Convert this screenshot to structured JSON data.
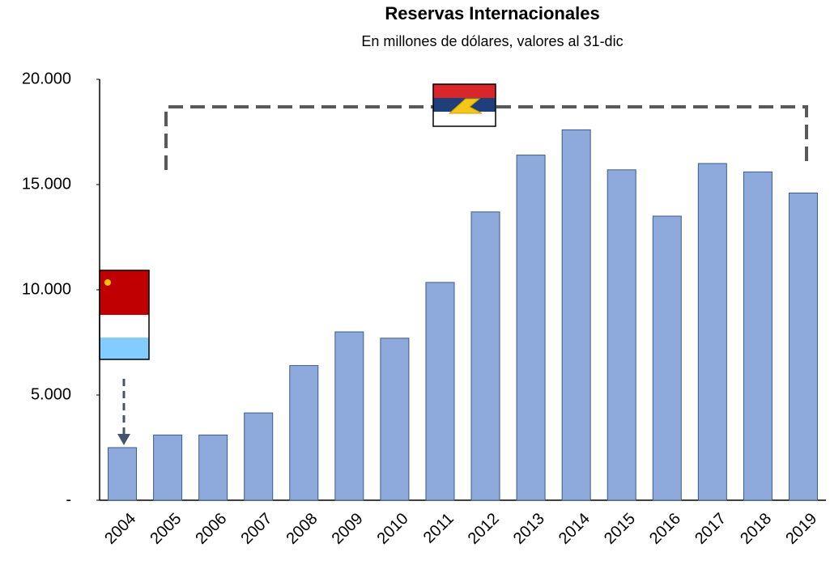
{
  "chart_data": {
    "type": "bar",
    "title": "Reservas Internacionales",
    "subtitle": "En millones de dólares, valores al 31-dic",
    "categories": [
      "2004",
      "2005",
      "2006",
      "2007",
      "2008",
      "2009",
      "2010",
      "2011",
      "2012",
      "2013",
      "2014",
      "2015",
      "2016",
      "2017",
      "2018",
      "2019"
    ],
    "values": [
      2500,
      3100,
      3100,
      4150,
      6400,
      8000,
      7700,
      10350,
      13700,
      16400,
      17600,
      15700,
      13500,
      16000,
      15600,
      14600
    ],
    "color": "#8eaadc",
    "ylim": [
      0,
      20000
    ],
    "yticks": [
      {
        "value": 0,
        "label": "-"
      },
      {
        "value": 5000,
        "label": "5.000"
      },
      {
        "value": 10000,
        "label": "10.000"
      },
      {
        "value": 15000,
        "label": "15.000"
      },
      {
        "value": 20000,
        "label": "20.000"
      }
    ],
    "grid": false
  }
}
